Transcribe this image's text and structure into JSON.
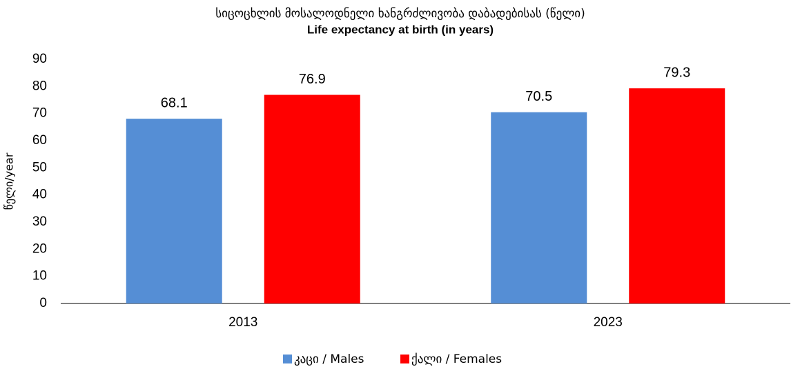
{
  "chart_data": {
    "type": "bar",
    "title": "სიცოცხლის მოსალოდნელი ხანგრძლივობა დაბადებისას (წელი)",
    "subtitle": "Life expectancy at birth (in years)",
    "y_label": "წელი/year",
    "categories": [
      "2013",
      "2023"
    ],
    "series": [
      {
        "name": "კაცი / Males",
        "color": "#558ed5",
        "values": [
          68.1,
          70.5
        ]
      },
      {
        "name": "ქალი / Females",
        "color": "#ff0000",
        "values": [
          76.9,
          79.3
        ]
      }
    ],
    "ylim": [
      0,
      90
    ],
    "yticks": [
      0,
      10,
      20,
      30,
      40,
      50,
      60,
      70,
      80,
      90
    ],
    "grid": false,
    "legend": "bottom"
  }
}
